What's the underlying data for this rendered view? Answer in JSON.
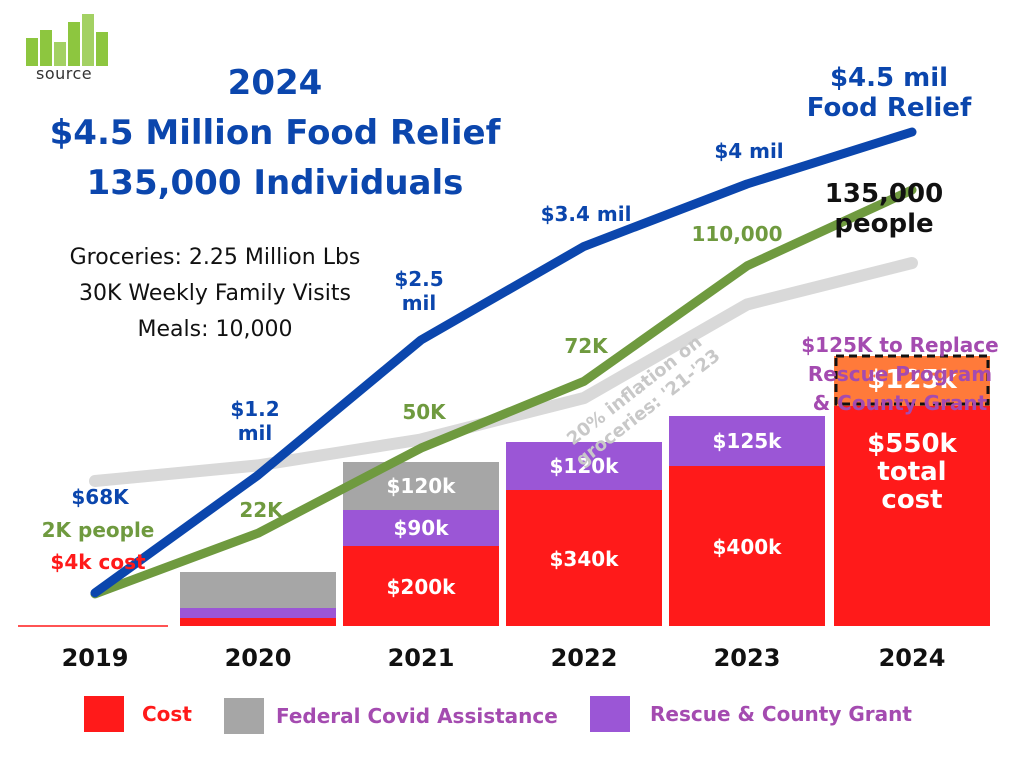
{
  "logo": {
    "text": "source"
  },
  "title": {
    "line1": "2024",
    "line2": "$4.5 Million Food Relief",
    "line3": "135,000 Individuals"
  },
  "stats": {
    "line1": "Groceries: 2.25 Million Lbs",
    "line2": "30K Weekly Family Visits",
    "line3": "Meals: 10,000"
  },
  "colors": {
    "cost": "#ff1a1a",
    "covid": "#a6a6a6",
    "rescue": "#9b56d6",
    "food_line": "#0b46ad",
    "people_line": "#6f9a3f",
    "inflation_line": "#d9d9d9",
    "replace_box": "#ff7a3a",
    "purple_text": "#a44bb0"
  },
  "chart_data": {
    "type": "bar",
    "categories": [
      "2019",
      "2020",
      "2021",
      "2022",
      "2023",
      "2024"
    ],
    "ylim": [
      0,
      700
    ],
    "series": [
      {
        "name": "Cost",
        "values": [
          4,
          20,
          200,
          340,
          400,
          550
        ],
        "labels": [
          "$4k cost",
          "",
          "$200k",
          "$340k",
          "$400k",
          "$550k\ntotal\ncost"
        ]
      },
      {
        "name": "Rescue & County Grant",
        "values": [
          0,
          25,
          90,
          120,
          125,
          125
        ],
        "labels": [
          "",
          "",
          "$90k",
          "$120k",
          "$125k",
          "$125k"
        ]
      },
      {
        "name": "Federal Covid Assistance",
        "values": [
          0,
          90,
          120,
          0,
          0,
          0
        ],
        "labels": [
          "",
          "",
          "$120k",
          "",
          "",
          ""
        ]
      }
    ],
    "lines": [
      {
        "key": "food_relief",
        "values": [
          0.068,
          1.2,
          2.5,
          3.4,
          4.0,
          4.5
        ],
        "labels": [
          "$68K",
          "$1.2\nmil",
          "$2.5\nmil",
          "$3.4 mil",
          "$4 mil",
          "$4.5 mil\nFood Relief"
        ]
      },
      {
        "key": "people",
        "values": [
          2000,
          22000,
          50000,
          72000,
          110000,
          135000
        ],
        "labels": [
          "2K people",
          "22K",
          "50K",
          "72K",
          "110,000",
          "135,000\npeople"
        ]
      },
      {
        "key": "inflation",
        "values": [
          1.0,
          1.03,
          1.08,
          1.16,
          1.34,
          1.42
        ]
      }
    ],
    "annotations": {
      "inflation": "20% inflation on\ngroceries: '21-'23",
      "replace": "$125K to Replace\nRescue Program\n& County Grant"
    },
    "legend": [
      {
        "label": "Cost",
        "color_key": "cost"
      },
      {
        "label": "Federal Covid Assistance",
        "color_key": "covid"
      },
      {
        "label": "Rescue & County Grant",
        "color_key": "rescue"
      }
    ]
  }
}
